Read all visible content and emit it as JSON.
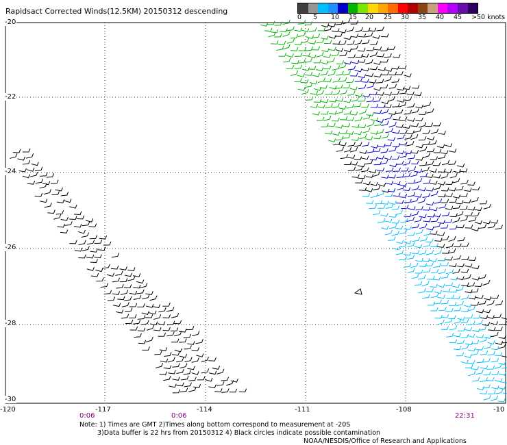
{
  "title": "Rapidsact Corrected Winds(12.5KM) 20150312 descending",
  "legend": {
    "labels": [
      "0",
      "5",
      "10",
      "15",
      "20",
      "25",
      "30",
      "35",
      "40",
      "45",
      ">50 knots"
    ],
    "colors": [
      "#3f3f3f",
      "#969696",
      "#00bfff",
      "#1e90ff",
      "#0000cd",
      "#00b400",
      "#78e600",
      "#ffd700",
      "#ffa500",
      "#ff6a00",
      "#ff0000",
      "#b40000",
      "#8b4513",
      "#c8a078",
      "#ff00ff",
      "#b400ff",
      "#6a0dad",
      "#2b0060"
    ]
  },
  "axes": {
    "lat_labels": [
      "-20",
      "-22",
      "-24",
      "-26",
      "-28",
      "-30"
    ],
    "lon_labels": [
      "-120",
      "-117",
      "-114",
      "-111",
      "-108",
      "-10"
    ]
  },
  "times": [
    "0:06",
    "0:06",
    "22:31"
  ],
  "notes": {
    "line1": "Note: 1) Times are GMT 2)Times along bottom correspond to measurement at -20S",
    "line2": "3)Data buffer is 22 hrs from 20150312 4) Black circles indicate possible contamination",
    "line3": "NOAA/NESDIS/Office of Research and Applications"
  },
  "colors": {
    "barb_default": "#000000",
    "barb_15_20": "#0000cd",
    "barb_20_25": "#00b400",
    "barb_10_15": "#00bfff",
    "barb_25_30": "#ffd700"
  }
}
